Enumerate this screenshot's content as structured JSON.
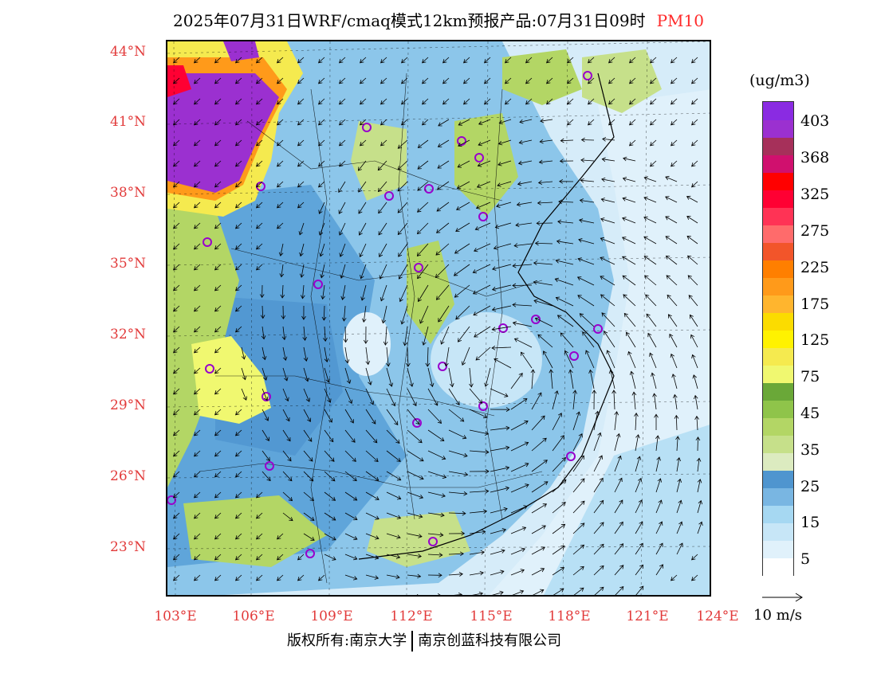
{
  "title": {
    "main": "2025年07月31日WRF/cmaq模式12km预报产品:07月31日09时",
    "pollutant": "PM10"
  },
  "lat_labels": [
    "44°N",
    "41°N",
    "38°N",
    "35°N",
    "32°N",
    "29°N",
    "26°N",
    "23°N"
  ],
  "lon_labels": [
    "103°E",
    "106°E",
    "109°E",
    "112°E",
    "115°E",
    "118°E",
    "121°E",
    "124°E"
  ],
  "legend": {
    "unit": "(ug/m3)",
    "colors": [
      "#ffffff",
      "#e0f1fb",
      "#c7e6f7",
      "#a6d8f2",
      "#79b6e2",
      "#4f95cf",
      "#dcebc0",
      "#c6e08a",
      "#b3d665",
      "#8fc44a",
      "#6aa838",
      "#f0f870",
      "#f5ea4f",
      "#fff200",
      "#fbdc00",
      "#ffb52e",
      "#ff9a1a",
      "#ff7f00",
      "#f2552a",
      "#ff6b6b",
      "#ff3355",
      "#ff0033",
      "#ff0000",
      "#d0106e",
      "#a6305a",
      "#9b30d0",
      "#8a2be2"
    ],
    "labels": [
      "403",
      "368",
      "325",
      "275",
      "225",
      "175",
      "125",
      "75",
      "45",
      "35",
      "25",
      "15",
      "5"
    ]
  },
  "wind_scale": {
    "label": "10 m/s"
  },
  "copyright": {
    "left": "版权所有:南京大学",
    "right": "南京创蓝科技有限公司"
  }
}
